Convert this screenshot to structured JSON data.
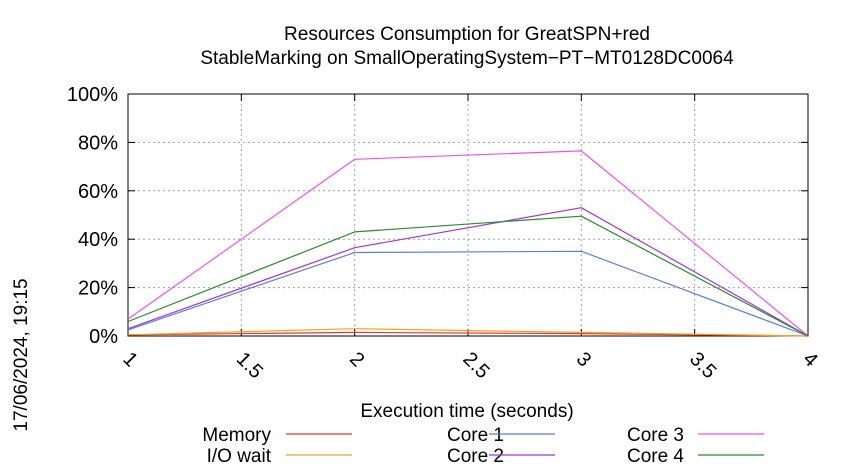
{
  "chart_data": {
    "type": "line",
    "title_line1": "Resources Consumption for GreatSPN+red",
    "title_line2": "StableMarking on SmallOperatingSystem−PT−MT0128DC0064",
    "xlabel": "Execution time (seconds)",
    "ylabel": "",
    "timestamp": "17/06/2024, 19:15",
    "xlim": [
      1,
      4
    ],
    "ylim": [
      0,
      100
    ],
    "x_ticks": [
      1,
      1.5,
      2,
      2.5,
      3,
      3.5,
      4
    ],
    "x_tick_labels": [
      "1",
      "1.5",
      "2",
      "2.5",
      "3",
      "3.5",
      "4"
    ],
    "y_ticks": [
      0,
      20,
      40,
      60,
      80,
      100
    ],
    "y_tick_labels": [
      "0%",
      "20%",
      "40%",
      "60%",
      "80%",
      "100%"
    ],
    "grid": true,
    "legend_position": "bottom",
    "x": [
      1,
      2,
      3,
      4
    ],
    "series": [
      {
        "name": "Memory",
        "color": "#e8382a",
        "values": [
          0.5,
          1.5,
          1.0,
          0
        ]
      },
      {
        "name": "I/O wait",
        "color": "#f2a21f",
        "values": [
          0.5,
          3.0,
          1.5,
          0
        ]
      },
      {
        "name": "Core 1",
        "color": "#5b7fd6",
        "values": [
          2.5,
          34.5,
          35.0,
          0
        ]
      },
      {
        "name": "Core 2",
        "color": "#9a3ad8",
        "values": [
          3.0,
          36.5,
          53.0,
          0
        ]
      },
      {
        "name": "Core 3",
        "color": "#ef52ef",
        "values": [
          7.0,
          73.0,
          76.5,
          0
        ]
      },
      {
        "name": "Core 4",
        "color": "#2c8a2c",
        "values": [
          6.0,
          43.0,
          49.5,
          0
        ]
      }
    ]
  }
}
